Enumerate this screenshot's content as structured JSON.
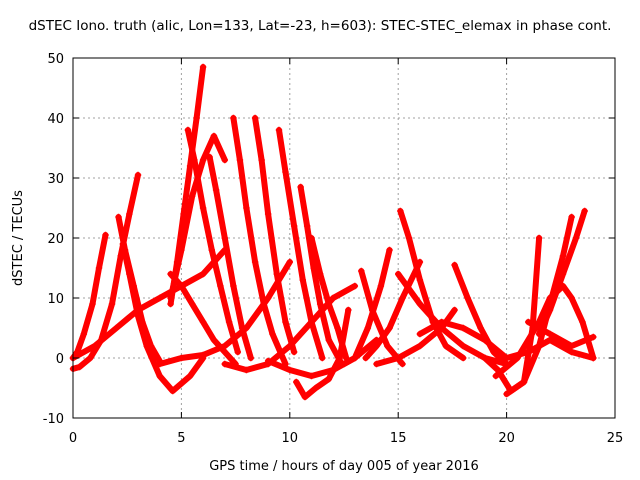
{
  "chart_data": {
    "type": "scatter",
    "title": "dSTEC Iono. truth (alic, Lon=133, Lat=-23, h=603): STEC-STEC_elemax in phase cont.",
    "xlabel": "GPS time / hours of day 005 of year 2016",
    "ylabel": "dSTEC  / TECUs",
    "xlim": [
      0,
      25
    ],
    "ylim": [
      -10,
      50
    ],
    "xticks": [
      0,
      5,
      10,
      15,
      20,
      25
    ],
    "yticks": [
      -10,
      0,
      10,
      20,
      30,
      40,
      50
    ],
    "grid": true,
    "grid_style": "dotted",
    "marker": "plus",
    "color": "#ff0000",
    "arcs": [
      {
        "x": [
          0.0,
          0.2,
          0.5,
          0.9,
          1.2,
          1.5
        ],
        "y": [
          0,
          1,
          4,
          9,
          15,
          20.5
        ]
      },
      {
        "x": [
          0.0,
          0.3,
          0.8,
          1.3,
          1.8,
          2.2,
          2.6,
          3.0
        ],
        "y": [
          -1.8,
          -1.5,
          0,
          3,
          9,
          17,
          24,
          30.5
        ]
      },
      {
        "x": [
          2.1,
          2.4,
          2.8,
          3.2,
          3.6,
          4.0
        ],
        "y": [
          23.5,
          18,
          12,
          6,
          2,
          -0.5
        ]
      },
      {
        "x": [
          2.3,
          2.6,
          3.0,
          3.4,
          4.0,
          4.6,
          5.4,
          6.0
        ],
        "y": [
          19,
          14,
          7,
          2,
          -3,
          -5.5,
          -3,
          0
        ]
      },
      {
        "x": [
          4.5,
          4.8,
          5.1,
          5.4,
          5.7,
          6.0
        ],
        "y": [
          9,
          16,
          24,
          32,
          40,
          48.5
        ]
      },
      {
        "x": [
          4.5,
          5.0,
          5.5,
          6.0,
          6.5,
          7.0
        ],
        "y": [
          10,
          18,
          27,
          33,
          37,
          33
        ]
      },
      {
        "x": [
          4.5,
          5.0,
          5.5,
          6.0,
          6.5,
          7.0,
          7.5
        ],
        "y": [
          14,
          12,
          9,
          6,
          3,
          1,
          -1
        ]
      },
      {
        "x": [
          5.3,
          5.6,
          6.0,
          6.4,
          6.8,
          7.2,
          7.6
        ],
        "y": [
          38,
          33,
          25,
          18,
          12,
          6,
          1
        ]
      },
      {
        "x": [
          6.3,
          6.6,
          7.0,
          7.4,
          7.8,
          8.2
        ],
        "y": [
          33.5,
          28,
          20,
          12,
          5,
          0
        ]
      },
      {
        "x": [
          7.4,
          7.7,
          8.0,
          8.4,
          8.8,
          9.2,
          9.8
        ],
        "y": [
          40,
          33,
          25,
          16,
          9,
          4,
          -1
        ]
      },
      {
        "x": [
          8.4,
          8.7,
          9.0,
          9.4,
          9.8,
          10.2
        ],
        "y": [
          40,
          33,
          24,
          14,
          6,
          1
        ]
      },
      {
        "x": [
          9.5,
          9.8,
          10.2,
          10.6,
          11.0,
          11.5
        ],
        "y": [
          38,
          31,
          22,
          13,
          6,
          0
        ]
      },
      {
        "x": [
          10.5,
          10.8,
          11.1,
          11.4,
          11.8,
          12.4
        ],
        "y": [
          28.5,
          22,
          15,
          9,
          3,
          -1
        ]
      },
      {
        "x": [
          11.0,
          11.4,
          11.8,
          12.2,
          12.6
        ],
        "y": [
          20,
          14,
          9,
          5,
          0
        ]
      },
      {
        "x": [
          10.3,
          10.7,
          11.2,
          11.8,
          12.3,
          12.7
        ],
        "y": [
          -4,
          -6.5,
          -5,
          -3.5,
          0,
          8
        ]
      },
      {
        "x": [
          4.0,
          5.0,
          6.0,
          7.0,
          8.0,
          9.0,
          10.0
        ],
        "y": [
          -1,
          0,
          0.5,
          2,
          5,
          10,
          16
        ]
      },
      {
        "x": [
          0.0,
          1.0,
          2.0,
          3.0,
          4.0,
          5.0,
          6.0,
          7.0
        ],
        "y": [
          0,
          2,
          5,
          8,
          10,
          12,
          14,
          18
        ]
      },
      {
        "x": [
          7.0,
          8.0,
          9.0,
          10.0,
          11.0,
          12.0,
          13.0
        ],
        "y": [
          -1,
          -2,
          -1,
          2,
          6,
          10,
          12
        ]
      },
      {
        "x": [
          9.0,
          10.0,
          11.0,
          12.0,
          13.0,
          14.0
        ],
        "y": [
          -0.5,
          -2,
          -3,
          -2,
          0,
          3
        ]
      },
      {
        "x": [
          13.3,
          13.8,
          14.5,
          15.2
        ],
        "y": [
          14.5,
          8,
          2,
          -1
        ]
      },
      {
        "x": [
          12.5,
          13.0,
          13.6,
          14.2,
          14.6
        ],
        "y": [
          -1,
          0,
          5,
          12,
          18
        ]
      },
      {
        "x": [
          13.5,
          14.0,
          14.6,
          15.2,
          16.0
        ],
        "y": [
          0,
          2,
          5,
          10,
          16
        ]
      },
      {
        "x": [
          15.1,
          15.5,
          16.0,
          16.6,
          17.2,
          18.0
        ],
        "y": [
          24.5,
          20,
          13,
          6,
          2,
          0
        ]
      },
      {
        "x": [
          14.0,
          15.0,
          16.0,
          17.0,
          17.6
        ],
        "y": [
          -1,
          0,
          2,
          5,
          8
        ]
      },
      {
        "x": [
          15.0,
          16.0,
          17.0,
          18.0,
          19.0,
          20.0
        ],
        "y": [
          14,
          9,
          5,
          2,
          0,
          -1
        ]
      },
      {
        "x": [
          17.6,
          18.2,
          18.8,
          19.4,
          20.0
        ],
        "y": [
          15.5,
          10,
          5,
          1,
          -1
        ]
      },
      {
        "x": [
          16.0,
          17.0,
          18.0,
          19.0,
          20.0
        ],
        "y": [
          4,
          6,
          5,
          3,
          0
        ]
      },
      {
        "x": [
          19.0,
          19.6,
          20.2,
          20.8,
          21.2,
          21.5
        ],
        "y": [
          0,
          -2,
          -5.5,
          -4,
          5,
          20
        ]
      },
      {
        "x": [
          20.0,
          20.8,
          21.5,
          22.0,
          22.6,
          23.0
        ],
        "y": [
          -6,
          -4,
          2,
          9,
          17,
          23.5
        ]
      },
      {
        "x": [
          19.5,
          20.5,
          21.5,
          22.0,
          22.6,
          23.0,
          23.5,
          24.0
        ],
        "y": [
          -3,
          0,
          6,
          10,
          12,
          10,
          6,
          0
        ]
      },
      {
        "x": [
          21.5,
          22.0,
          22.6,
          23.2,
          23.6
        ],
        "y": [
          4,
          8,
          14,
          20,
          24.5
        ]
      },
      {
        "x": [
          21.0,
          22.0,
          23.0,
          24.0
        ],
        "y": [
          6,
          4,
          2,
          3.5
        ]
      },
      {
        "x": [
          20.0,
          21.0,
          22.0,
          23.0,
          24.0
        ],
        "y": [
          0,
          1,
          3,
          1,
          0
        ]
      }
    ]
  }
}
